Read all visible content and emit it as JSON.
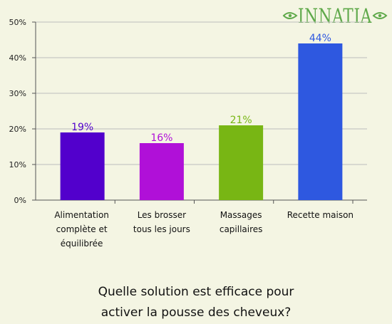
{
  "brand": {
    "logo_text": "INNATIA",
    "accent": "#5fa94a"
  },
  "chart_data": {
    "type": "bar",
    "title_lines": [
      "Quelle solution est efficace pour",
      "activer la pousse des cheveux?"
    ],
    "categories": [
      [
        "Alimentation",
        "complète et",
        "équilibrée"
      ],
      [
        "Les brosser",
        "tous les jours"
      ],
      [
        "Massages",
        "capillaires"
      ],
      [
        "Recette maison"
      ]
    ],
    "values": [
      19,
      16,
      21,
      44
    ],
    "value_labels": [
      "19%",
      "16%",
      "21%",
      "44%"
    ],
    "bar_colors": [
      "#5200cc",
      "#b010d8",
      "#78b614",
      "#2e58e0"
    ],
    "label_colors": [
      "#5200cc",
      "#b010d8",
      "#78b614",
      "#2e58e0"
    ],
    "yticks": [
      0,
      10,
      20,
      30,
      40,
      50
    ],
    "ytick_labels": [
      "0%",
      "10%",
      "20%",
      "30%",
      "40%",
      "50%"
    ],
    "ylim": [
      0,
      50
    ],
    "grid": true,
    "legend": false,
    "xlabel": "",
    "ylabel": ""
  }
}
